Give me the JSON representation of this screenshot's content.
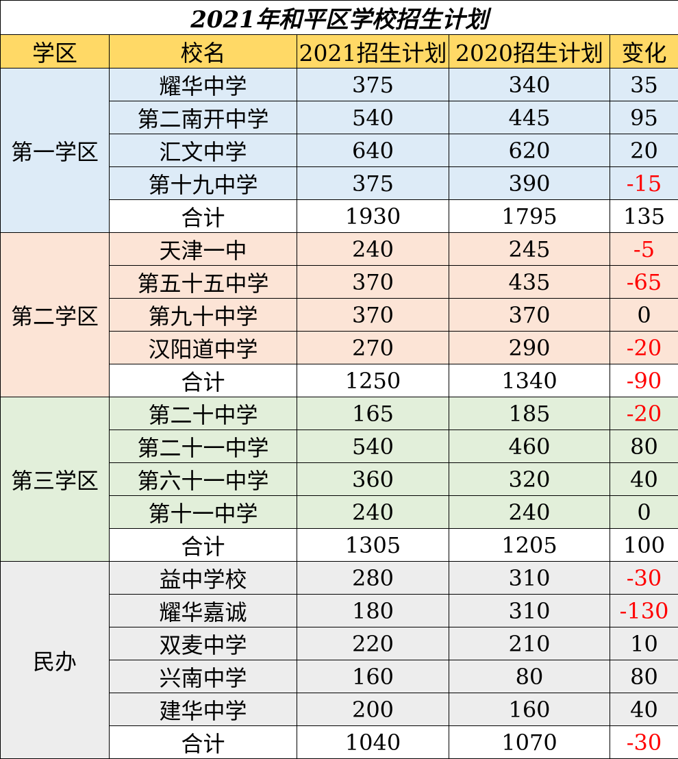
{
  "title": "2021年和平区学校招生计划",
  "headers": [
    "学区",
    "校名",
    "2021招生计划",
    "2020招生计划",
    "变化"
  ],
  "total_label": "合计",
  "districts": [
    {
      "name": "第一学区",
      "color": "#ddebf7",
      "schools": [
        {
          "name": "耀华中学",
          "plan2021": "375",
          "plan2020": "340",
          "change": "35"
        },
        {
          "name": "第二南开中学",
          "plan2021": "540",
          "plan2020": "445",
          "change": "95"
        },
        {
          "name": "汇文中学",
          "plan2021": "640",
          "plan2020": "620",
          "change": "20"
        },
        {
          "name": "第十九中学",
          "plan2021": "375",
          "plan2020": "390",
          "change": "-15"
        }
      ],
      "total": {
        "plan2021": "1930",
        "plan2020": "1795",
        "change": "135"
      }
    },
    {
      "name": "第二学区",
      "color": "#fce4d6",
      "schools": [
        {
          "name": "天津一中",
          "plan2021": "240",
          "plan2020": "245",
          "change": "-5"
        },
        {
          "name": "第五十五中学",
          "plan2021": "370",
          "plan2020": "435",
          "change": "-65"
        },
        {
          "name": "第九十中学",
          "plan2021": "370",
          "plan2020": "370",
          "change": "0"
        },
        {
          "name": "汉阳道中学",
          "plan2021": "270",
          "plan2020": "290",
          "change": "-20"
        }
      ],
      "total": {
        "plan2021": "1250",
        "plan2020": "1340",
        "change": "-90"
      }
    },
    {
      "name": "第三学区",
      "color": "#e2efda",
      "schools": [
        {
          "name": "第二十中学",
          "plan2021": "165",
          "plan2020": "185",
          "change": "-20"
        },
        {
          "name": "第二十一中学",
          "plan2021": "540",
          "plan2020": "460",
          "change": "80"
        },
        {
          "name": "第六十一中学",
          "plan2021": "360",
          "plan2020": "320",
          "change": "40"
        },
        {
          "name": "第十一中学",
          "plan2021": "240",
          "plan2020": "240",
          "change": "0"
        }
      ],
      "total": {
        "plan2021": "1305",
        "plan2020": "1205",
        "change": "100"
      }
    },
    {
      "name": "民办",
      "color": "#ededed",
      "schools": [
        {
          "name": "益中学校",
          "plan2021": "280",
          "plan2020": "310",
          "change": "-30"
        },
        {
          "name": "耀华嘉诚",
          "plan2021": "180",
          "plan2020": "310",
          "change": "-130"
        },
        {
          "name": "双麦中学",
          "plan2021": "220",
          "plan2020": "210",
          "change": "10"
        },
        {
          "name": "兴南中学",
          "plan2021": "160",
          "plan2020": "80",
          "change": "80"
        },
        {
          "name": "建华中学",
          "plan2021": "200",
          "plan2020": "160",
          "change": "40"
        }
      ],
      "total": {
        "plan2021": "1040",
        "plan2020": "1070",
        "change": "-30"
      }
    }
  ],
  "colors": {
    "header_bg": "#ffd966",
    "negative_text": "#ff0000"
  }
}
